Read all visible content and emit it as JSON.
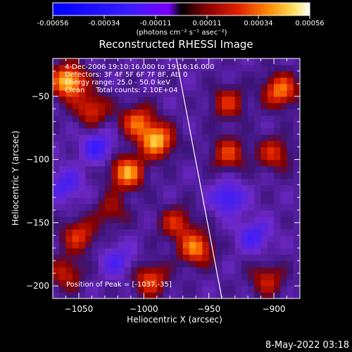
{
  "chart_data": {
    "type": "heatmap",
    "title": "Reconstructed RHESSI Image",
    "xlabel": "Heliocentric X (arcsec)",
    "ylabel": "Heliocentric Y (arcsec)",
    "xlim": [
      -1070,
      -880
    ],
    "ylim": [
      -210,
      -20
    ],
    "xticks": [
      -1050,
      -1000,
      -950,
      -900
    ],
    "yticks": [
      -50,
      -100,
      -150,
      -200
    ],
    "colorbar": {
      "label": "(photons cm⁻² s⁻¹ asec⁻²)",
      "ticks": [
        "-0.00056",
        "-0.00034",
        "-0.00011",
        "0.00011",
        "0.00034",
        "0.00056"
      ],
      "range": [
        -0.00056,
        0.00056
      ]
    },
    "info_lines": [
      "4-Dec-2006 19:10:16.000 to 19:16:16.000",
      "Detectors: 3F 4F 5F 6F 7F 8F, Att 0",
      "Energy range: 25.0 - 50.0 keV",
      "Clean     Total counts: 2.10E+04"
    ],
    "peak_label": "Position of Peak = [-1037,-35]",
    "peak": [
      -1037,
      -35
    ],
    "limb_line": [
      [
        -975,
        -20
      ],
      [
        -940,
        -210
      ]
    ],
    "sources": [
      {
        "x": -1058,
        "y": -38,
        "intensity": 1.0
      },
      {
        "x": -1040,
        "y": -60,
        "intensity": 0.55
      },
      {
        "x": -1005,
        "y": -70,
        "intensity": 0.65
      },
      {
        "x": -990,
        "y": -85,
        "intensity": 0.9
      },
      {
        "x": -1013,
        "y": -110,
        "intensity": 0.85
      },
      {
        "x": -1050,
        "y": -160,
        "intensity": 0.55
      },
      {
        "x": -1060,
        "y": -190,
        "intensity": 0.45
      },
      {
        "x": -975,
        "y": -150,
        "intensity": 0.5
      },
      {
        "x": -960,
        "y": -170,
        "intensity": 0.75
      },
      {
        "x": -995,
        "y": -195,
        "intensity": 0.6
      },
      {
        "x": -935,
        "y": -95,
        "intensity": 0.55
      },
      {
        "x": -935,
        "y": -55,
        "intensity": 0.5
      },
      {
        "x": -895,
        "y": -45,
        "intensity": 0.75
      },
      {
        "x": -900,
        "y": -95,
        "intensity": 0.5
      },
      {
        "x": -905,
        "y": -195,
        "intensity": 0.45
      },
      {
        "x": -1025,
        "y": -140,
        "intensity": 0.35
      },
      {
        "x": -1060,
        "y": -120,
        "intensity": -0.4
      },
      {
        "x": -1020,
        "y": -180,
        "intensity": -0.35
      },
      {
        "x": -935,
        "y": -130,
        "intensity": -0.5
      },
      {
        "x": -915,
        "y": -160,
        "intensity": -0.4
      },
      {
        "x": -1035,
        "y": -90,
        "intensity": -0.45
      }
    ]
  },
  "footer": {
    "datetime": "8-May-2022 03:18"
  }
}
